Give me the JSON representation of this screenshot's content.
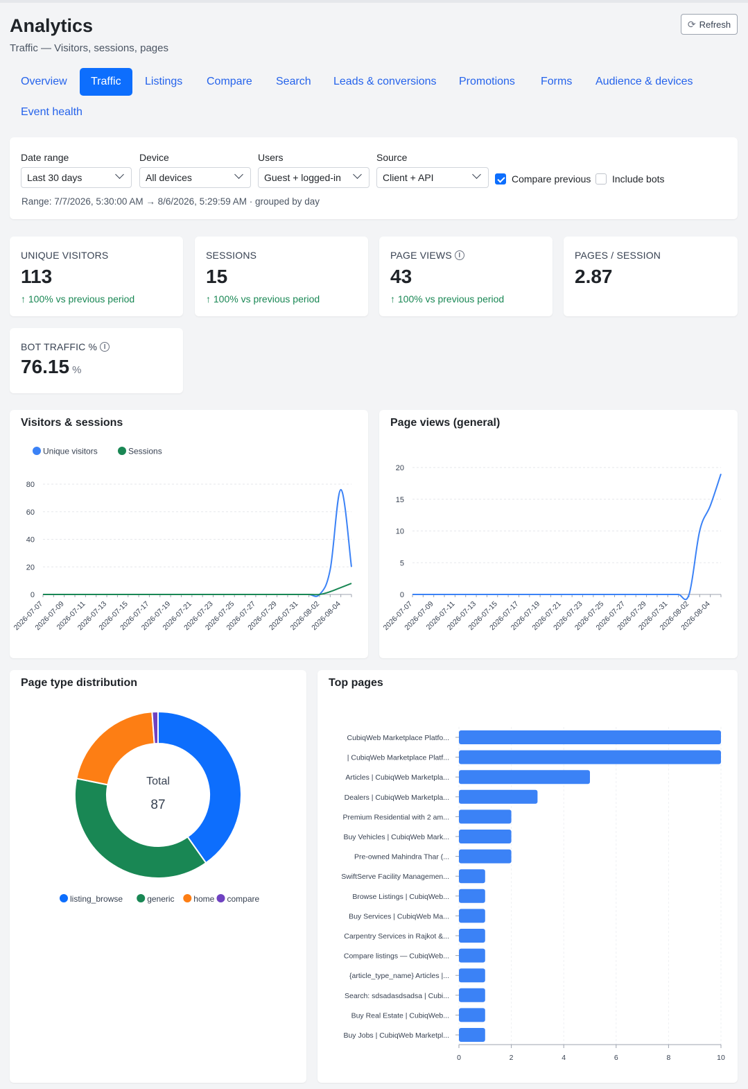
{
  "header": {
    "title": "Analytics",
    "subtitle": "Traffic — Visitors, sessions, pages",
    "refresh_label": "Refresh"
  },
  "tabs": [
    {
      "label": "Overview",
      "active": false
    },
    {
      "label": "Traffic",
      "active": true
    },
    {
      "label": "Listings",
      "active": false
    },
    {
      "label": "Compare",
      "active": false
    },
    {
      "label": "Search",
      "active": false
    },
    {
      "label": "Leads & conversions",
      "active": false
    },
    {
      "label": "Promotions",
      "active": false
    },
    {
      "label": "Forms",
      "active": false
    },
    {
      "label": "Audience & devices",
      "active": false
    },
    {
      "label": "Event health",
      "active": false
    }
  ],
  "filters": {
    "date_range": {
      "label": "Date range",
      "value": "Last 30 days"
    },
    "device": {
      "label": "Device",
      "value": "All devices"
    },
    "users": {
      "label": "Users",
      "value": "Guest + logged-in"
    },
    "source": {
      "label": "Source",
      "value": "Client + API"
    },
    "compare_previous": {
      "label": "Compare previous",
      "checked": true
    },
    "include_bots": {
      "label": "Include bots",
      "checked": false
    },
    "range_text": "Range: 7/7/2026, 5:30:00 AM → 8/6/2026, 5:29:59 AM · grouped by day"
  },
  "kpis": {
    "unique_visitors": {
      "label": "UNIQUE VISITORS",
      "value": "113",
      "delta": "↑ 100% vs previous period"
    },
    "sessions": {
      "label": "SESSIONS",
      "value": "15",
      "delta": "↑ 100% vs previous period"
    },
    "page_views": {
      "label": "PAGE VIEWS",
      "value": "43",
      "delta": "↑ 100% vs previous period"
    },
    "pages_per_session": {
      "label": "PAGES / SESSION",
      "value": "2.87"
    },
    "bot_traffic": {
      "label": "BOT TRAFFIC %",
      "value": "76.15",
      "unit": "%"
    }
  },
  "colors": {
    "accent": "#0d6efd",
    "blue_series": "#3b82f6",
    "green_series": "#198754",
    "orange": "#fd7e14",
    "purple": "#6f42c1",
    "delta_green": "#198754"
  },
  "chart_data": [
    {
      "id": "visitors_sessions",
      "type": "line",
      "title": "Visitors & sessions",
      "x": [
        "2026-07-07",
        "2026-07-08",
        "2026-07-09",
        "2026-07-10",
        "2026-07-11",
        "2026-07-12",
        "2026-07-13",
        "2026-07-14",
        "2026-07-15",
        "2026-07-16",
        "2026-07-17",
        "2026-07-18",
        "2026-07-19",
        "2026-07-20",
        "2026-07-21",
        "2026-07-22",
        "2026-07-23",
        "2026-07-24",
        "2026-07-25",
        "2026-07-26",
        "2026-07-27",
        "2026-07-28",
        "2026-07-29",
        "2026-07-30",
        "2026-07-31",
        "2026-08-01",
        "2026-08-02",
        "2026-08-03",
        "2026-08-04",
        "2026-08-05"
      ],
      "xticks": [
        "2026-07-07",
        "2026-07-09",
        "2026-07-11",
        "2026-07-13",
        "2026-07-15",
        "2026-07-17",
        "2026-07-19",
        "2026-07-21",
        "2026-07-23",
        "2026-07-25",
        "2026-07-27",
        "2026-07-29",
        "2026-07-31",
        "2026-08-02",
        "2026-08-04"
      ],
      "series": [
        {
          "name": "Unique visitors",
          "color": "#3b82f6",
          "values": [
            0,
            0,
            0,
            0,
            0,
            0,
            0,
            0,
            0,
            0,
            0,
            0,
            0,
            0,
            0,
            0,
            0,
            0,
            0,
            0,
            0,
            0,
            0,
            0,
            0,
            0,
            0,
            18,
            76,
            20
          ]
        },
        {
          "name": "Sessions",
          "color": "#198754",
          "values": [
            0,
            0,
            0,
            0,
            0,
            0,
            0,
            0,
            0,
            0,
            0,
            0,
            0,
            0,
            0,
            0,
            0,
            0,
            0,
            0,
            0,
            0,
            0,
            0,
            0,
            0,
            0,
            2,
            5,
            8
          ]
        }
      ],
      "ylim": [
        0,
        80
      ],
      "yticks": [
        0,
        20,
        40,
        60,
        80
      ],
      "grid": true,
      "legend": "top-left"
    },
    {
      "id": "page_views",
      "type": "line",
      "title": "Page views (general)",
      "x": [
        "2026-07-07",
        "2026-07-08",
        "2026-07-09",
        "2026-07-10",
        "2026-07-11",
        "2026-07-12",
        "2026-07-13",
        "2026-07-14",
        "2026-07-15",
        "2026-07-16",
        "2026-07-17",
        "2026-07-18",
        "2026-07-19",
        "2026-07-20",
        "2026-07-21",
        "2026-07-22",
        "2026-07-23",
        "2026-07-24",
        "2026-07-25",
        "2026-07-26",
        "2026-07-27",
        "2026-07-28",
        "2026-07-29",
        "2026-07-30",
        "2026-07-31",
        "2026-08-01",
        "2026-08-02",
        "2026-08-03",
        "2026-08-04",
        "2026-08-05"
      ],
      "xticks": [
        "2026-07-07",
        "2026-07-09",
        "2026-07-11",
        "2026-07-13",
        "2026-07-15",
        "2026-07-17",
        "2026-07-19",
        "2026-07-21",
        "2026-07-23",
        "2026-07-25",
        "2026-07-27",
        "2026-07-29",
        "2026-07-31",
        "2026-08-02",
        "2026-08-04"
      ],
      "series": [
        {
          "color": "#3b82f6",
          "values": [
            0,
            0,
            0,
            0,
            0,
            0,
            0,
            0,
            0,
            0,
            0,
            0,
            0,
            0,
            0,
            0,
            0,
            0,
            0,
            0,
            0,
            0,
            0,
            0,
            0,
            0,
            0,
            10,
            14,
            19
          ]
        }
      ],
      "ylim": [
        0,
        20
      ],
      "yticks": [
        0,
        5,
        10,
        15,
        20
      ],
      "grid": true
    },
    {
      "id": "page_type_distribution",
      "type": "pie",
      "title": "Page type distribution",
      "center_label": "Total",
      "center_value": "87",
      "slices": [
        {
          "name": "listing_browse",
          "value": 35,
          "color": "#0d6efd"
        },
        {
          "name": "generic",
          "value": 33,
          "color": "#198754"
        },
        {
          "name": "home",
          "value": 18,
          "color": "#fd7e14"
        },
        {
          "name": "compare",
          "value": 1,
          "color": "#6f42c1"
        }
      ],
      "legend": "bottom"
    },
    {
      "id": "top_pages",
      "type": "bar",
      "orientation": "horizontal",
      "title": "Top pages",
      "color": "#3b82f6",
      "categories": [
        "CubiqWeb Marketplace Platfo...",
        "| CubiqWeb Marketplace Platf...",
        "Articles | CubiqWeb Marketpla...",
        "Dealers | CubiqWeb Marketpla...",
        "Premium Residential with 2 am...",
        "Buy Vehicles | CubiqWeb Mark...",
        "Pre-owned Mahindra Thar (...",
        "SwiftServe Facility Managemen...",
        "Browse Listings | CubiqWeb...",
        "Buy Services | CubiqWeb Ma...",
        "Carpentry Services in Rajkot &...",
        "Compare listings — CubiqWeb...",
        "{article_type_name} Articles |...",
        "Search: sdsadasdsadsa | Cubi...",
        "Buy Real Estate | CubiqWeb...",
        "Buy Jobs | CubiqWeb Marketpl..."
      ],
      "values": [
        10,
        10,
        5,
        3,
        2,
        2,
        2,
        1,
        1,
        1,
        1,
        1,
        1,
        1,
        1,
        1
      ],
      "xlim": [
        0,
        10
      ],
      "xticks": [
        0,
        2,
        4,
        6,
        8,
        10
      ],
      "grid": true
    }
  ]
}
